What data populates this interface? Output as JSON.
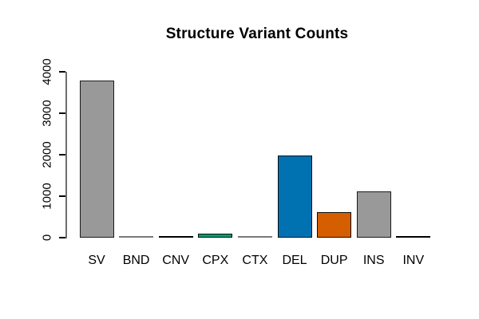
{
  "chart_data": {
    "type": "bar",
    "title": "Structure Variant Counts",
    "categories": [
      "SV",
      "BND",
      "CNV",
      "CPX",
      "CTX",
      "DEL",
      "DUP",
      "INS",
      "INV"
    ],
    "values": [
      3780,
      10,
      30,
      100,
      8,
      1980,
      620,
      1120,
      25
    ],
    "bar_colors": [
      "#999999",
      "#999999",
      "#000000",
      "#009E73",
      "#999999",
      "#0072B2",
      "#D55E00",
      "#999999",
      "#000000"
    ],
    "bar_border_colors": [
      "#1a1a1a",
      "#7a7a7a",
      "#000000",
      "#0d0d0d",
      "#7a7a7a",
      "#0d0d0d",
      "#0d0d0d",
      "#1a1a1a",
      "#000000"
    ],
    "xlabel": "",
    "ylabel": "",
    "ylim": [
      0,
      4000
    ],
    "yticks": [
      0,
      1000,
      2000,
      3000,
      4000
    ],
    "ytick_labels": [
      "0",
      "1000",
      "2000",
      "3000",
      "4000"
    ],
    "grid": false,
    "legend": "none",
    "background": "#ffffff",
    "axis_color": "#6e6e6e",
    "tick_color": "#000000",
    "title_color": "#000000"
  }
}
